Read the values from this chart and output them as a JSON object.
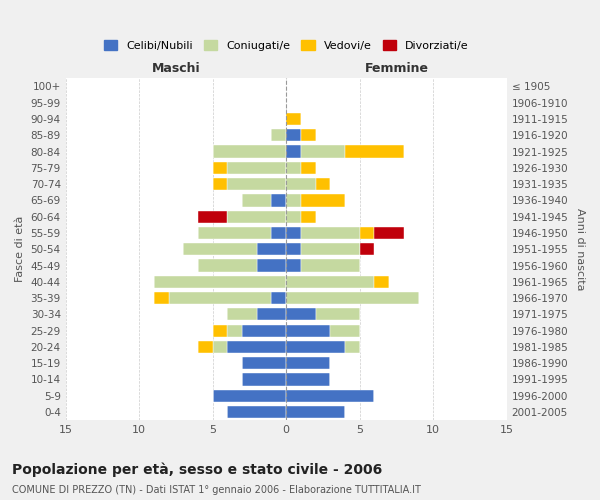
{
  "age_groups": [
    "0-4",
    "5-9",
    "10-14",
    "15-19",
    "20-24",
    "25-29",
    "30-34",
    "35-39",
    "40-44",
    "45-49",
    "50-54",
    "55-59",
    "60-64",
    "65-69",
    "70-74",
    "75-79",
    "80-84",
    "85-89",
    "90-94",
    "95-99",
    "100+"
  ],
  "birth_years": [
    "2001-2005",
    "1996-2000",
    "1991-1995",
    "1986-1990",
    "1981-1985",
    "1976-1980",
    "1971-1975",
    "1966-1970",
    "1961-1965",
    "1956-1960",
    "1951-1955",
    "1946-1950",
    "1941-1945",
    "1936-1940",
    "1931-1935",
    "1926-1930",
    "1921-1925",
    "1916-1920",
    "1911-1915",
    "1906-1910",
    "≤ 1905"
  ],
  "male": {
    "celibi": [
      4,
      5,
      3,
      3,
      4,
      3,
      2,
      1,
      0,
      2,
      2,
      1,
      0,
      1,
      0,
      0,
      0,
      0,
      0,
      0,
      0
    ],
    "coniugati": [
      0,
      0,
      0,
      0,
      1,
      1,
      2,
      7,
      9,
      4,
      5,
      5,
      4,
      2,
      4,
      4,
      5,
      1,
      0,
      0,
      0
    ],
    "vedovi": [
      0,
      0,
      0,
      0,
      1,
      1,
      0,
      1,
      0,
      0,
      0,
      0,
      0,
      0,
      1,
      1,
      0,
      0,
      0,
      0,
      0
    ],
    "divorziati": [
      0,
      0,
      0,
      0,
      0,
      0,
      0,
      0,
      0,
      0,
      0,
      0,
      2,
      0,
      0,
      0,
      0,
      0,
      0,
      0,
      0
    ]
  },
  "female": {
    "nubili": [
      4,
      6,
      3,
      3,
      4,
      3,
      2,
      0,
      0,
      1,
      1,
      1,
      0,
      0,
      0,
      0,
      1,
      1,
      0,
      0,
      0
    ],
    "coniugate": [
      0,
      0,
      0,
      0,
      1,
      2,
      3,
      9,
      6,
      4,
      4,
      4,
      1,
      1,
      2,
      1,
      3,
      0,
      0,
      0,
      0
    ],
    "vedove": [
      0,
      0,
      0,
      0,
      0,
      0,
      0,
      0,
      1,
      0,
      0,
      1,
      1,
      3,
      1,
      1,
      4,
      1,
      1,
      0,
      0
    ],
    "divorziate": [
      0,
      0,
      0,
      0,
      0,
      0,
      0,
      0,
      0,
      0,
      1,
      2,
      0,
      0,
      0,
      0,
      0,
      0,
      0,
      0,
      0
    ]
  },
  "colors": {
    "celibi_nubili": "#4472c4",
    "coniugati": "#c5d9a0",
    "vedovi": "#ffc000",
    "divorziati": "#c0000b"
  },
  "xlim": 15,
  "title": "Popolazione per età, sesso e stato civile - 2006",
  "subtitle": "COMUNE DI PREZZO (TN) - Dati ISTAT 1° gennaio 2006 - Elaborazione TUTTITALIA.IT",
  "ylabel_left": "Fasce di età",
  "ylabel_right": "Anni di nascita",
  "xlabel_male": "Maschi",
  "xlabel_female": "Femmine",
  "legend_labels": [
    "Celibi/Nubili",
    "Coniugati/e",
    "Vedovi/e",
    "Divorziati/e"
  ],
  "background_color": "#f0f0f0",
  "plot_background": "#ffffff"
}
